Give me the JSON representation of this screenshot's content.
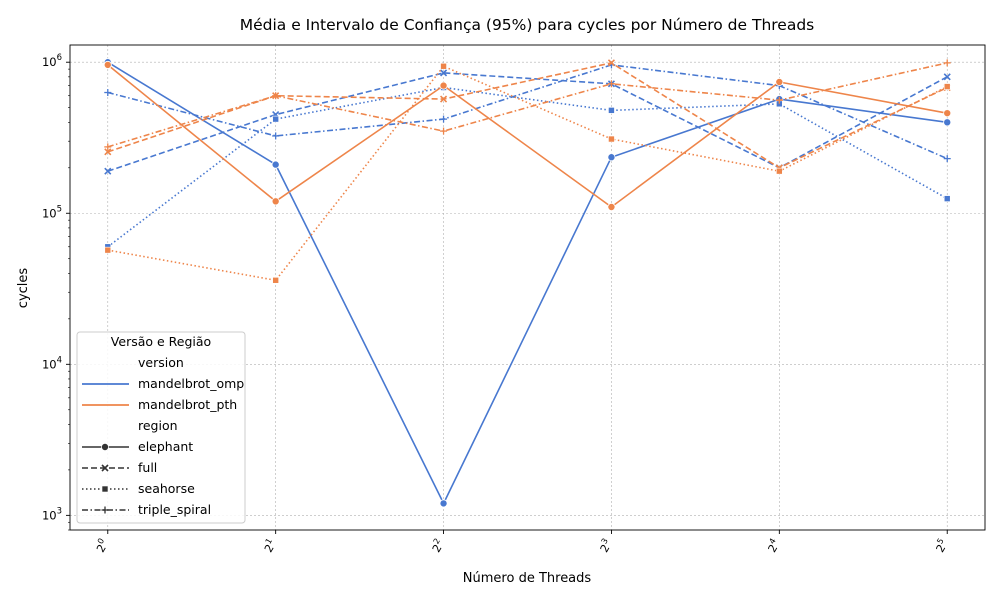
{
  "chart_data": {
    "type": "line",
    "title": "Média e Intervalo de Confiança (95%) para cycles por Número de Threads",
    "xlabel": "Número de Threads",
    "ylabel": "cycles",
    "x_scale": "log2",
    "y_scale": "log10",
    "x": [
      1,
      2,
      4,
      8,
      16,
      32
    ],
    "x_tick_labels": [
      {
        "base": "2",
        "exp": "0"
      },
      {
        "base": "2",
        "exp": "1"
      },
      {
        "base": "2",
        "exp": "2"
      },
      {
        "base": "2",
        "exp": "3"
      },
      {
        "base": "2",
        "exp": "4"
      },
      {
        "base": "2",
        "exp": "5"
      }
    ],
    "y_ticks": [
      {
        "value": 1000,
        "base": "10",
        "exp": "3"
      },
      {
        "value": 10000,
        "base": "10",
        "exp": "4"
      },
      {
        "value": 100000,
        "base": "10",
        "exp": "5"
      },
      {
        "value": 1000000,
        "base": "10",
        "exp": "6"
      }
    ],
    "ylim": [
      800,
      1300000
    ],
    "grid": true,
    "legend": {
      "title": "Versão e Região",
      "placement": "lower-left",
      "version_header": "version",
      "region_header": "region"
    },
    "versions": [
      {
        "name": "mandelbrot_omp",
        "color": "#4878d0"
      },
      {
        "name": "mandelbrot_pth",
        "color": "#ee854a"
      }
    ],
    "regions": [
      {
        "name": "elephant",
        "dash": "solid",
        "marker": "circle"
      },
      {
        "name": "full",
        "dash": "dashed",
        "marker": "x"
      },
      {
        "name": "seahorse",
        "dash": "dotted",
        "marker": "square"
      },
      {
        "name": "triple_spiral",
        "dash": "dashdot",
        "marker": "plus"
      }
    ],
    "series": [
      {
        "version": "mandelbrot_omp",
        "region": "elephant",
        "values": [
          1000000,
          210000,
          1200,
          235000,
          570000,
          400000
        ]
      },
      {
        "version": "mandelbrot_omp",
        "region": "full",
        "values": [
          190000,
          450000,
          850000,
          720000,
          200000,
          800000
        ]
      },
      {
        "version": "mandelbrot_omp",
        "region": "seahorse",
        "values": [
          60000,
          420000,
          680000,
          480000,
          530000,
          125000
        ]
      },
      {
        "version": "mandelbrot_omp",
        "region": "triple_spiral",
        "values": [
          630000,
          325000,
          420000,
          960000,
          700000,
          230000
        ]
      },
      {
        "version": "mandelbrot_pth",
        "region": "elephant",
        "values": [
          960000,
          120000,
          700000,
          110000,
          740000,
          460000
        ]
      },
      {
        "version": "mandelbrot_pth",
        "region": "full",
        "values": [
          255000,
          600000,
          570000,
          990000,
          200000,
          680000
        ]
      },
      {
        "version": "mandelbrot_pth",
        "region": "seahorse",
        "values": [
          57000,
          36000,
          940000,
          310000,
          190000,
          690000
        ]
      },
      {
        "version": "mandelbrot_pth",
        "region": "triple_spiral",
        "values": [
          275000,
          600000,
          350000,
          720000,
          560000,
          990000
        ]
      }
    ]
  }
}
